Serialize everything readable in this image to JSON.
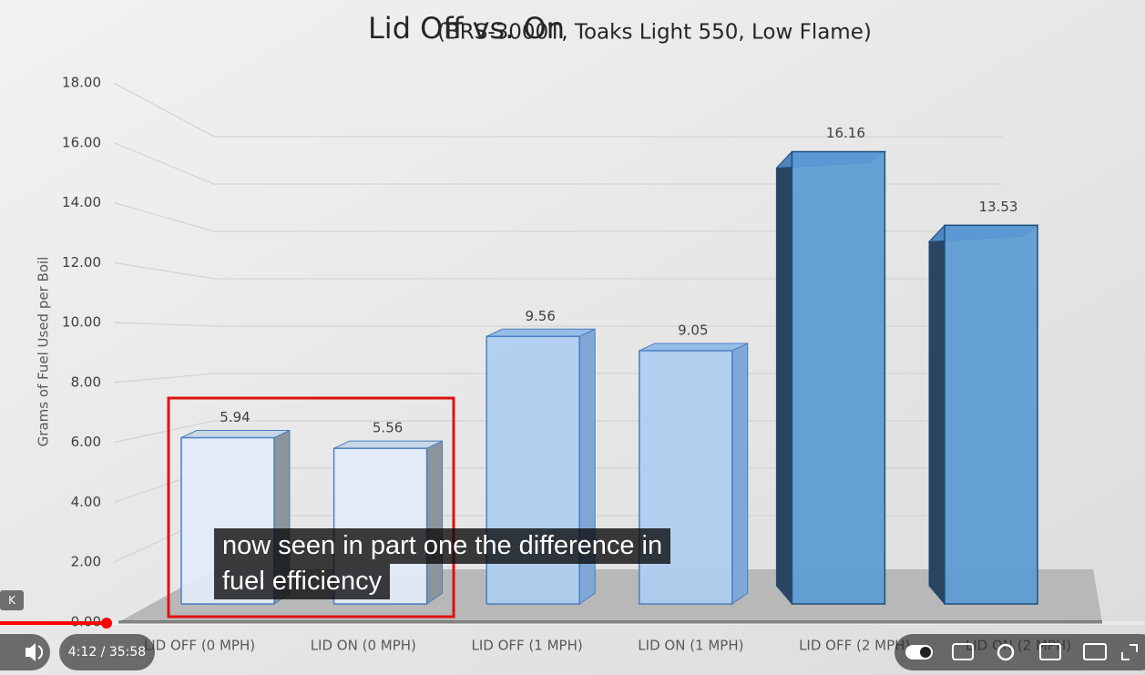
{
  "chart_data": {
    "type": "bar3d",
    "title": "Lid Off vs. On",
    "subtitle": "(BRS-3000T, Toaks Light 550, Low Flame)",
    "y_label": "Grams of Fuel Used per Boil",
    "categories": [
      "LID OFF (0 MPH)",
      "LID ON (0 MPH)",
      "LID OFF (1 MPH)",
      "LID ON (1 MPH)",
      "LID OFF (2 MPH)",
      "LID ON (2 MPH)"
    ],
    "values": [
      5.94,
      5.56,
      9.56,
      9.05,
      16.16,
      13.53
    ],
    "colors": [
      "#e2ecf8",
      "#e2ecf8",
      "#aecdf0",
      "#aecdf0",
      "#5b9bd5",
      "#5b9bd5"
    ],
    "ylim": [
      0,
      18
    ],
    "yticks": [
      {
        "value": 0,
        "label": "0.00"
      },
      {
        "value": 2,
        "label": "2.00"
      },
      {
        "value": 4,
        "label": "4.00"
      },
      {
        "value": 6,
        "label": "6.00"
      },
      {
        "value": 8,
        "label": "8.00"
      },
      {
        "value": 10,
        "label": "10.00"
      },
      {
        "value": 12,
        "label": "12.00"
      },
      {
        "value": 14,
        "label": "14.00"
      },
      {
        "value": 16,
        "label": "16.00"
      },
      {
        "value": 18,
        "label": "18.00"
      }
    ],
    "grid": true
  },
  "player": {
    "captions": [
      "now seen in part one the difference in",
      "fuel efficiency"
    ],
    "time": "4:12 / 35:58",
    "key_hint": "K"
  }
}
